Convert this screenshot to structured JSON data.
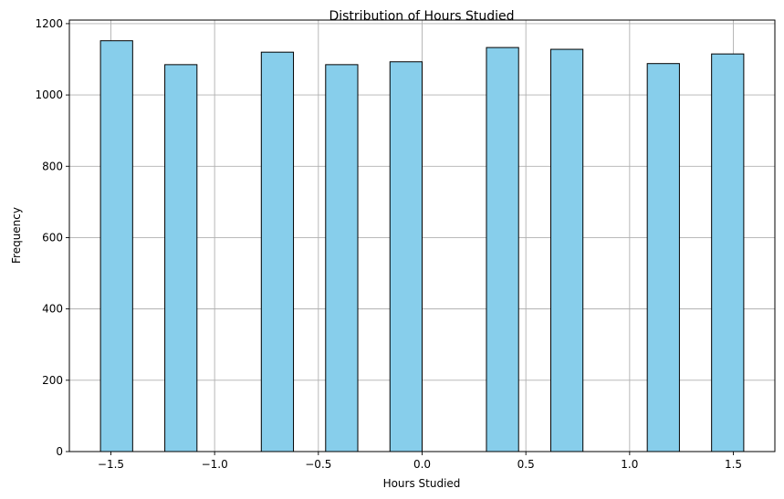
{
  "chart_data": {
    "type": "histogram",
    "title": "Distribution of Hours Studied",
    "xlabel": "Hours Studied",
    "ylabel": "Frequency",
    "xlim": [
      -1.7,
      1.7
    ],
    "ylim": [
      0,
      1210
    ],
    "xticks": [
      -1.5,
      -1.0,
      -0.5,
      0.0,
      0.5,
      1.0,
      1.5
    ],
    "xtick_labels": [
      "−1.5",
      "−1.0",
      "−0.5",
      "0.0",
      "0.5",
      "1.0",
      "1.5"
    ],
    "yticks": [
      0,
      200,
      400,
      600,
      800,
      1000,
      1200
    ],
    "ytick_labels": [
      "0",
      "200",
      "400",
      "600",
      "800",
      "1000",
      "1200"
    ],
    "grid": true,
    "bar_color": "#87ceeb",
    "edge_color": "#000000",
    "bins": [
      {
        "x0": -1.55,
        "x1": -1.395,
        "count": 1152
      },
      {
        "x0": -1.24,
        "x1": -1.085,
        "count": 1085
      },
      {
        "x0": -0.775,
        "x1": -0.62,
        "count": 1120
      },
      {
        "x0": -0.465,
        "x1": -0.31,
        "count": 1085
      },
      {
        "x0": -0.155,
        "x1": 0.0,
        "count": 1093
      },
      {
        "x0": 0.31,
        "x1": 0.465,
        "count": 1133
      },
      {
        "x0": 0.62,
        "x1": 0.775,
        "count": 1128
      },
      {
        "x0": 1.085,
        "x1": 1.24,
        "count": 1088
      },
      {
        "x0": 1.395,
        "x1": 1.55,
        "count": 1115
      }
    ]
  }
}
